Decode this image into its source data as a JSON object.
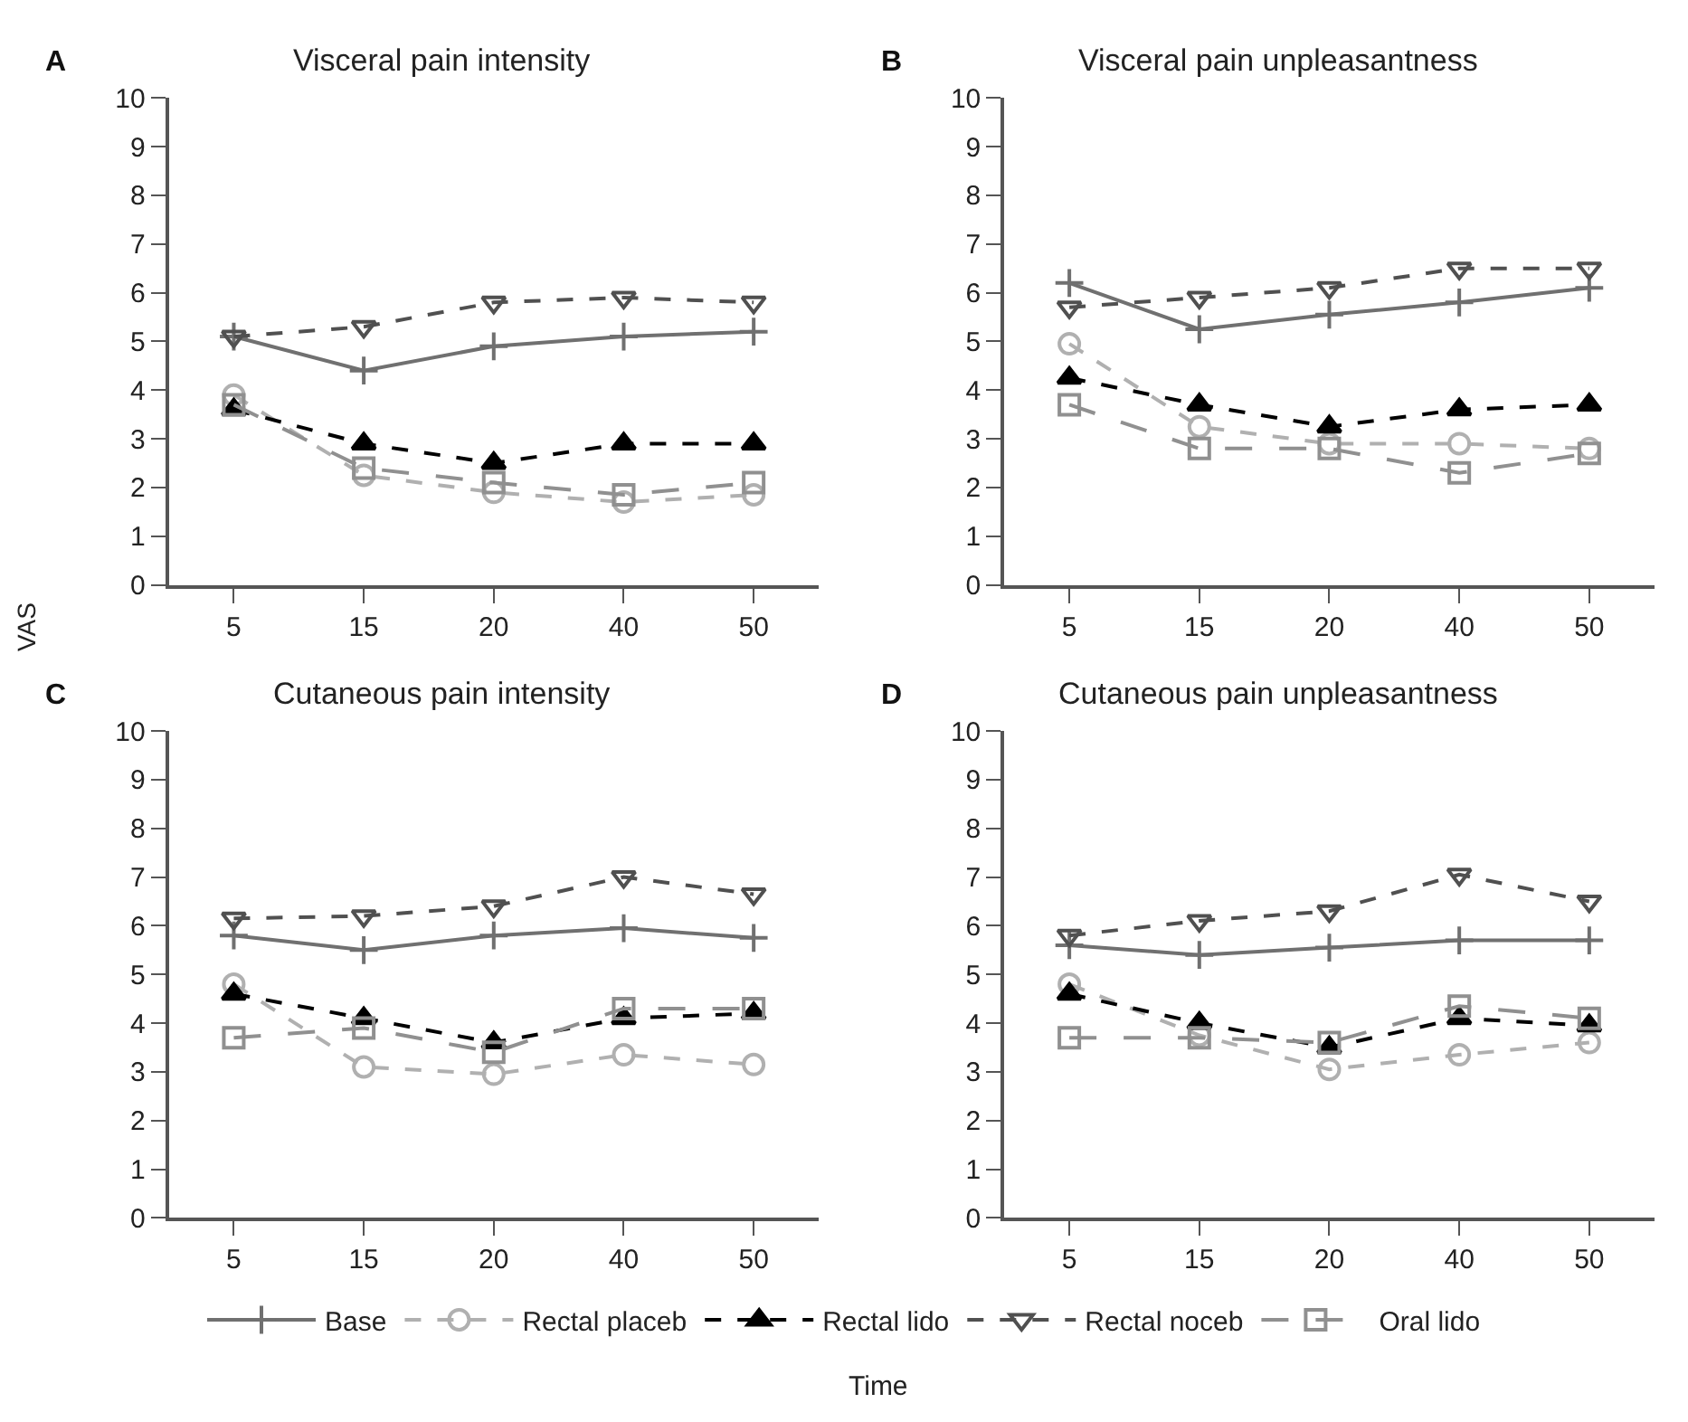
{
  "chart_data": [
    {
      "type": "line",
      "title": "Visceral pain intensity",
      "annotations": [
        "A"
      ],
      "categories": [
        "5",
        "15",
        "20",
        "40",
        "50"
      ],
      "ylim": [
        0,
        10
      ],
      "yticks": [
        0,
        1,
        2,
        3,
        4,
        5,
        6,
        7,
        8,
        9,
        10
      ],
      "legend": "bottom",
      "series": [
        {
          "name": "Base",
          "color": "#707070",
          "marker": "cross",
          "line_style": "solid",
          "values": [
            5.1,
            4.4,
            4.9,
            5.1,
            5.2
          ]
        },
        {
          "name": "Rectal placeb",
          "color": "#b0b0b0",
          "marker": "circle",
          "line_style": "dashed",
          "values": [
            3.9,
            2.25,
            1.9,
            1.7,
            1.85
          ]
        },
        {
          "name": "Rectal lido",
          "color": "#000000",
          "marker": "triangle",
          "line_style": "dashed",
          "values": [
            3.6,
            2.9,
            2.5,
            2.9,
            2.9
          ]
        },
        {
          "name": "Rectal noceb",
          "color": "#505050",
          "marker": "triangle-down",
          "line_style": "dashed",
          "values": [
            5.1,
            5.3,
            5.8,
            5.9,
            5.8
          ]
        },
        {
          "name": "Oral lido",
          "color": "#909090",
          "marker": "square",
          "line_style": "longdash",
          "values": [
            3.7,
            2.4,
            2.1,
            1.85,
            2.1
          ]
        }
      ]
    },
    {
      "type": "line",
      "title": "Visceral pain unpleasantness",
      "annotations": [
        "B"
      ],
      "categories": [
        "5",
        "15",
        "20",
        "40",
        "50"
      ],
      "ylim": [
        0,
        10
      ],
      "yticks": [
        0,
        1,
        2,
        3,
        4,
        5,
        6,
        7,
        8,
        9,
        10
      ],
      "series": [
        {
          "color": "#707070",
          "marker": "cross",
          "line_style": "solid",
          "values": [
            6.2,
            5.25,
            5.55,
            5.8,
            6.1
          ]
        },
        {
          "color": "#b0b0b0",
          "marker": "circle",
          "line_style": "dashed",
          "values": [
            4.95,
            3.25,
            2.9,
            2.9,
            2.8
          ]
        },
        {
          "color": "#000000",
          "marker": "triangle",
          "line_style": "dashed",
          "values": [
            4.25,
            3.7,
            3.25,
            3.6,
            3.7
          ]
        },
        {
          "color": "#505050",
          "marker": "triangle-down",
          "line_style": "dashed",
          "values": [
            5.7,
            5.9,
            6.1,
            6.5,
            6.5
          ]
        },
        {
          "color": "#909090",
          "marker": "square",
          "line_style": "longdash",
          "values": [
            3.7,
            2.8,
            2.8,
            2.3,
            2.7
          ]
        }
      ]
    },
    {
      "type": "line",
      "title": "Cutaneous pain intensity",
      "annotations": [
        "C"
      ],
      "ylabel": "VAS",
      "categories": [
        "5",
        "15",
        "20",
        "40",
        "50"
      ],
      "ylim": [
        0,
        10
      ],
      "yticks": [
        0,
        1,
        2,
        3,
        4,
        5,
        6,
        7,
        8,
        9,
        10
      ],
      "series": [
        {
          "color": "#707070",
          "marker": "cross",
          "line_style": "solid",
          "values": [
            5.8,
            5.5,
            5.8,
            5.95,
            5.75
          ]
        },
        {
          "color": "#b0b0b0",
          "marker": "circle",
          "line_style": "dashed",
          "values": [
            4.8,
            3.1,
            2.95,
            3.35,
            3.15
          ]
        },
        {
          "color": "#000000",
          "marker": "triangle",
          "line_style": "dashed",
          "values": [
            4.6,
            4.1,
            3.6,
            4.1,
            4.2
          ]
        },
        {
          "color": "#505050",
          "marker": "triangle-down",
          "line_style": "dashed",
          "values": [
            6.15,
            6.2,
            6.4,
            7.0,
            6.65
          ]
        },
        {
          "color": "#909090",
          "marker": "square",
          "line_style": "longdash",
          "values": [
            3.7,
            3.9,
            3.4,
            4.3,
            4.3
          ]
        }
      ]
    },
    {
      "type": "line",
      "title": "Cutaneous pain unpleasantness",
      "annotations": [
        "D"
      ],
      "xlabel": "Time",
      "categories": [
        "5",
        "15",
        "20",
        "40",
        "50"
      ],
      "ylim": [
        0,
        10
      ],
      "yticks": [
        0,
        1,
        2,
        3,
        4,
        5,
        6,
        7,
        8,
        9,
        10
      ],
      "series": [
        {
          "color": "#707070",
          "marker": "cross",
          "line_style": "solid",
          "values": [
            5.6,
            5.4,
            5.55,
            5.7,
            5.7
          ]
        },
        {
          "color": "#b0b0b0",
          "marker": "circle",
          "line_style": "dashed",
          "values": [
            4.8,
            3.75,
            3.05,
            3.35,
            3.6
          ]
        },
        {
          "color": "#000000",
          "marker": "triangle",
          "line_style": "dashed",
          "values": [
            4.6,
            4.0,
            3.5,
            4.1,
            3.95
          ]
        },
        {
          "color": "#505050",
          "marker": "triangle-down",
          "line_style": "dashed",
          "values": [
            5.8,
            6.1,
            6.3,
            7.05,
            6.5
          ]
        },
        {
          "color": "#909090",
          "marker": "square",
          "line_style": "longdash",
          "values": [
            3.7,
            3.7,
            3.6,
            4.35,
            4.1
          ]
        }
      ]
    }
  ]
}
